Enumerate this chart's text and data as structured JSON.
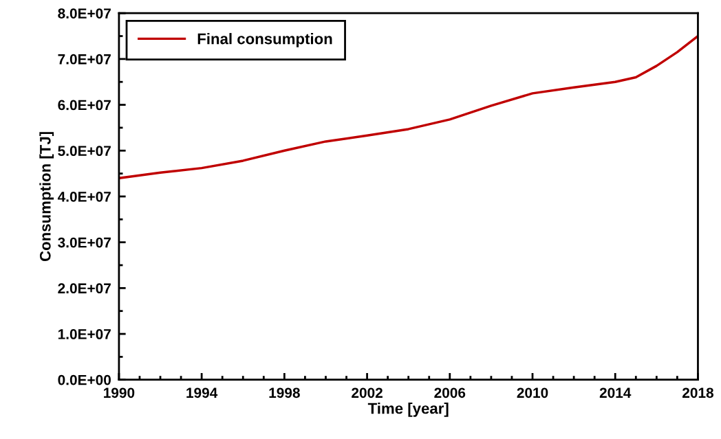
{
  "chart_data": {
    "type": "line",
    "xlabel": "Time [year]",
    "ylabel": "Consumption [TJ]",
    "x": [
      1990,
      1992,
      1994,
      1996,
      1998,
      2000,
      2002,
      2004,
      2006,
      2008,
      2010,
      2012,
      2014,
      2015,
      2016,
      2017,
      2018
    ],
    "series": [
      {
        "name": "Final consumption",
        "color": "#c00000",
        "values": [
          44000000,
          45200000,
          46200000,
          47800000,
          50000000,
          52000000,
          53300000,
          54700000,
          56800000,
          59800000,
          62500000,
          63800000,
          65000000,
          66000000,
          68500000,
          71500000,
          75000000
        ]
      }
    ],
    "xlim": [
      1990,
      2018
    ],
    "xticks": [
      1990,
      1994,
      1998,
      2002,
      2006,
      2010,
      2014,
      2018
    ],
    "ylim": [
      0,
      80000000
    ],
    "yticks": [
      {
        "value": 0,
        "label": "0.0E+00"
      },
      {
        "value": 10000000,
        "label": "1.0E+07"
      },
      {
        "value": 20000000,
        "label": "2.0E+07"
      },
      {
        "value": 30000000,
        "label": "3.0E+07"
      },
      {
        "value": 40000000,
        "label": "4.0E+07"
      },
      {
        "value": 50000000,
        "label": "5.0E+07"
      },
      {
        "value": 60000000,
        "label": "6.0E+07"
      },
      {
        "value": 70000000,
        "label": "7.0E+07"
      },
      {
        "value": 80000000,
        "label": "8.0E+07"
      }
    ],
    "legend": "top left",
    "grid": false,
    "line_style": "solid",
    "marker": "none"
  }
}
